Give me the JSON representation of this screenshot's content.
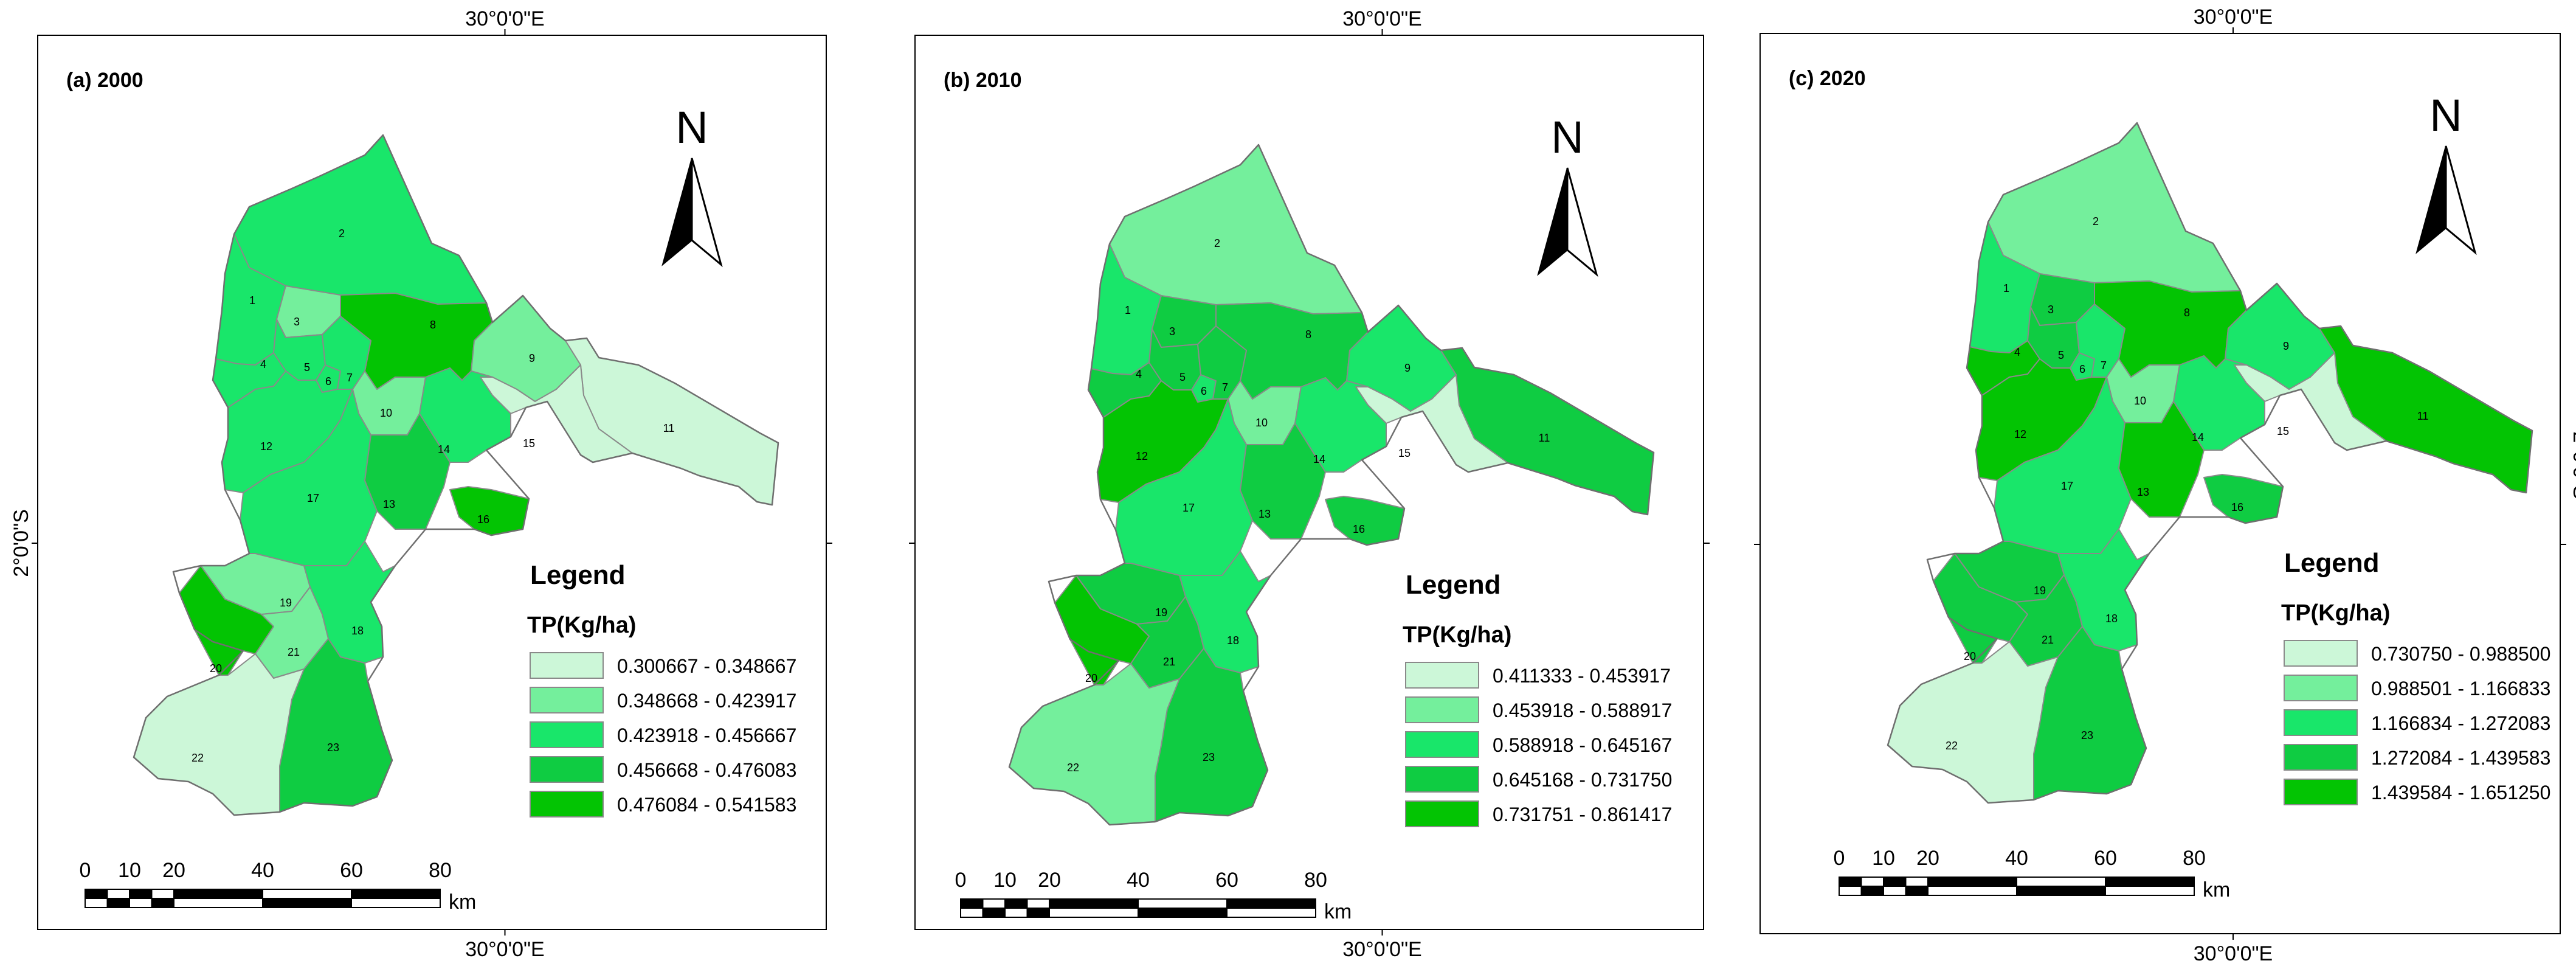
{
  "coords": {
    "lon": "30°0'0\"E",
    "lat": "2°0'0\"S"
  },
  "north_label": "N",
  "legend_title": "Legend",
  "legend_subtitle": "TP(Kg/ha)",
  "scale": {
    "ticks": [
      "0",
      "10",
      "20",
      "40",
      "60",
      "80"
    ],
    "unit": "km"
  },
  "colors": [
    "#ccf7d8",
    "#74ef9c",
    "#19e66a",
    "#0fcc42",
    "#03c403"
  ],
  "panels": [
    {
      "title": "(a)  2000",
      "classes": [
        "0.300667 - 0.348667",
        "0.348668 - 0.423917",
        "0.423918 - 0.456667",
        "0.456668 - 0.476083",
        "0.476084 - 0.541583"
      ],
      "subbasin_class": [
        2,
        2,
        1,
        2,
        2,
        2,
        2,
        4,
        1,
        1,
        0,
        2,
        3,
        2,
        0,
        4,
        2,
        2,
        1,
        4,
        1,
        0,
        3
      ]
    },
    {
      "title": "(b)  2010",
      "classes": [
        "0.411333 - 0.453917",
        "0.453918 - 0.588917",
        "0.588918 - 0.645167",
        "0.645168 - 0.731750",
        "0.731751 - 0.861417"
      ],
      "subbasin_class": [
        2,
        1,
        3,
        3,
        3,
        2,
        3,
        3,
        2,
        1,
        3,
        4,
        3,
        2,
        0,
        3,
        2,
        2,
        3,
        4,
        3,
        1,
        3
      ]
    },
    {
      "title": "(c)  2020",
      "classes": [
        "0.730750 - 0.988500",
        "0.988501 - 1.166833",
        "1.166834 - 1.272083",
        "1.272084 - 1.439583",
        "1.439584 - 1.651250"
      ],
      "subbasin_class": [
        2,
        1,
        3,
        4,
        3,
        2,
        2,
        4,
        2,
        1,
        4,
        4,
        4,
        2,
        0,
        3,
        2,
        2,
        3,
        3,
        3,
        0,
        3
      ]
    }
  ],
  "subbasin_labels": [
    "1",
    "2",
    "3",
    "4",
    "5",
    "6",
    "7",
    "8",
    "9",
    "10",
    "11",
    "12",
    "13",
    "14",
    "15",
    "16",
    "17",
    "18",
    "19",
    "20",
    "21",
    "22",
    "23"
  ]
}
